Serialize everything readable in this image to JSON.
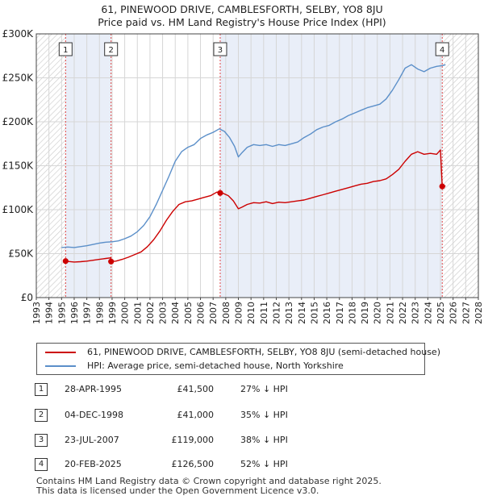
{
  "chart_data": {
    "type": "line",
    "title": "61, PINEWOOD DRIVE, CAMBLESFORTH, SELBY, YO8 8JU",
    "subtitle": "Price paid vs. HM Land Registry's House Price Index (HPI)",
    "xlabel": "",
    "ylabel": "",
    "xlim": [
      1993,
      2028
    ],
    "ylim": [
      0,
      300000
    ],
    "x_ticks": [
      "1993",
      "1994",
      "1995",
      "1996",
      "1997",
      "1998",
      "1999",
      "2000",
      "2001",
      "2002",
      "2003",
      "2004",
      "2005",
      "2006",
      "2007",
      "2008",
      "2009",
      "2010",
      "2011",
      "2012",
      "2013",
      "2014",
      "2015",
      "2016",
      "2017",
      "2018",
      "2019",
      "2020",
      "2021",
      "2022",
      "2023",
      "2024",
      "2025",
      "2026",
      "2027",
      "2028"
    ],
    "y_ticks": [
      {
        "value": 0,
        "label": "£0"
      },
      {
        "value": 50000,
        "label": "£50K"
      },
      {
        "value": 100000,
        "label": "£100K"
      },
      {
        "value": 150000,
        "label": "£150K"
      },
      {
        "value": 200000,
        "label": "£200K"
      },
      {
        "value": 250000,
        "label": "£250K"
      },
      {
        "value": 300000,
        "label": "£300K"
      }
    ],
    "hatched_ranges": [
      [
        1993,
        1995.32
      ],
      [
        2025.14,
        2028
      ]
    ],
    "shaded_ranges": [
      [
        1995.32,
        1998.92
      ],
      [
        2007.56,
        2025.14
      ]
    ],
    "series": [
      {
        "name": "61, PINEWOOD DRIVE, CAMBLESFORTH, SELBY, YO8 8JU (semi-detached house)",
        "color": "#cc0000",
        "x": [
          1995.32,
          1995.6,
          1996.0,
          1996.5,
          1997.0,
          1997.5,
          1998.0,
          1998.5,
          1998.9,
          1998.92,
          1999.3,
          1999.8,
          2000.3,
          2000.8,
          2001.3,
          2001.8,
          2002.3,
          2002.8,
          2003.3,
          2003.8,
          2004.3,
          2004.8,
          2005.3,
          2005.8,
          2006.3,
          2006.8,
          2007.3,
          2007.56,
          2007.8,
          2008.2,
          2008.6,
          2009.0,
          2009.3,
          2009.7,
          2010.2,
          2010.7,
          2011.2,
          2011.7,
          2012.2,
          2012.7,
          2013.2,
          2013.7,
          2014.2,
          2014.7,
          2015.2,
          2015.7,
          2016.2,
          2016.7,
          2017.2,
          2017.7,
          2018.2,
          2018.7,
          2019.2,
          2019.7,
          2020.2,
          2020.7,
          2021.2,
          2021.7,
          2022.2,
          2022.7,
          2023.2,
          2023.7,
          2024.2,
          2024.7,
          2025.0,
          2025.14,
          2025.4
        ],
        "values": [
          41500,
          41000,
          40500,
          40800,
          41500,
          42500,
          43500,
          44500,
          45200,
          41000,
          41500,
          43500,
          46000,
          49000,
          52000,
          58000,
          66000,
          76000,
          88000,
          98000,
          106000,
          109000,
          110000,
          112000,
          114000,
          116000,
          120000,
          119000,
          118500,
          116000,
          110000,
          101000,
          103000,
          106000,
          108000,
          107500,
          109000,
          107000,
          108500,
          108000,
          109000,
          110000,
          111000,
          113000,
          115000,
          117000,
          119000,
          121000,
          123000,
          125000,
          127000,
          129000,
          130000,
          132000,
          133000,
          135000,
          140000,
          146000,
          155000,
          163000,
          166000,
          163000,
          164000,
          163000,
          168000,
          126500,
          127000
        ]
      },
      {
        "name": "HPI: Average price, semi-detached house, North Yorkshire",
        "color": "#5b8fc9",
        "x": [
          1995.0,
          1995.5,
          1996.0,
          1996.5,
          1997.0,
          1997.5,
          1998.0,
          1998.5,
          1999.0,
          1999.5,
          2000.0,
          2000.5,
          2001.0,
          2001.5,
          2002.0,
          2002.5,
          2003.0,
          2003.5,
          2004.0,
          2004.5,
          2005.0,
          2005.5,
          2006.0,
          2006.5,
          2007.0,
          2007.5,
          2007.9,
          2008.3,
          2008.7,
          2009.0,
          2009.3,
          2009.7,
          2010.2,
          2010.7,
          2011.2,
          2011.7,
          2012.2,
          2012.7,
          2013.2,
          2013.7,
          2014.2,
          2014.7,
          2015.2,
          2015.7,
          2016.2,
          2016.7,
          2017.2,
          2017.7,
          2018.2,
          2018.7,
          2019.2,
          2019.7,
          2020.2,
          2020.7,
          2021.2,
          2021.7,
          2022.2,
          2022.7,
          2023.2,
          2023.7,
          2024.2,
          2024.7,
          2025.2,
          2025.4
        ],
        "values": [
          57000,
          57500,
          57000,
          58000,
          59000,
          60500,
          62000,
          63000,
          63500,
          64500,
          67000,
          70000,
          75000,
          82000,
          92000,
          106000,
          122000,
          138000,
          155000,
          166000,
          171000,
          174000,
          181000,
          185000,
          188000,
          192000,
          189000,
          182000,
          172000,
          160000,
          165000,
          171000,
          174000,
          173000,
          174000,
          172000,
          174000,
          173000,
          175000,
          177000,
          182000,
          186000,
          191000,
          194000,
          196000,
          200000,
          203000,
          207000,
          210000,
          213000,
          216000,
          218000,
          220000,
          226000,
          236000,
          248000,
          261000,
          265000,
          260000,
          257000,
          261000,
          263000,
          264000,
          265000
        ]
      }
    ],
    "markers": [
      {
        "label": "1",
        "x": 1995.32,
        "y": 41500
      },
      {
        "label": "2",
        "x": 1998.92,
        "y": 41000
      },
      {
        "label": "3",
        "x": 2007.56,
        "y": 119000
      },
      {
        "label": "4",
        "x": 2025.14,
        "y": 126500
      }
    ]
  },
  "legend": {
    "property_label": "61, PINEWOOD DRIVE, CAMBLESFORTH, SELBY, YO8 8JU (semi-detached house)",
    "hpi_label": "HPI: Average price, semi-detached house, North Yorkshire"
  },
  "sales": [
    {
      "num": "1",
      "date": "28-APR-1995",
      "price": "£41,500",
      "pct": "27% ↓ HPI"
    },
    {
      "num": "2",
      "date": "04-DEC-1998",
      "price": "£41,000",
      "pct": "35% ↓ HPI"
    },
    {
      "num": "3",
      "date": "23-JUL-2007",
      "price": "£119,000",
      "pct": "38% ↓ HPI"
    },
    {
      "num": "4",
      "date": "20-FEB-2025",
      "price": "£126,500",
      "pct": "52% ↓ HPI"
    }
  ],
  "footer": {
    "line1": "Contains HM Land Registry data © Crown copyright and database right 2025.",
    "line2": "This data is licensed under the Open Government Licence v3.0."
  },
  "colors": {
    "property": "#cc0000",
    "hpi": "#5b8fc9",
    "shade": "#e9eef8",
    "grid": "#d6d6d6",
    "marker_line": "#e04545"
  }
}
